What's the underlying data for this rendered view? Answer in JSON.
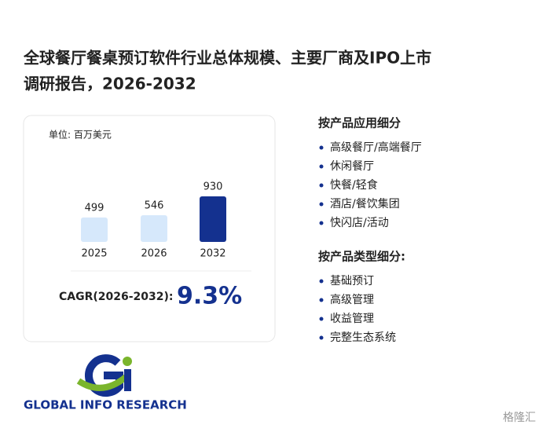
{
  "header": {
    "title_line1": "全球餐厅餐桌预订软件行业总体规模、主要厂商及IPO上市",
    "title_line2": "调研报告，2026-2032"
  },
  "chart_data": {
    "type": "bar",
    "unit": "单位: 百万美元",
    "categories": [
      "2025",
      "2026",
      "2032"
    ],
    "values": [
      499,
      546,
      930
    ],
    "colors": [
      "#d6e8fb",
      "#d6e8fb",
      "#14318f"
    ]
  },
  "cagr": {
    "label": "CAGR(2026-2032):",
    "value": "9.3%"
  },
  "segments": [
    {
      "heading": "按产品应用细分",
      "items": [
        "高级餐厅/高端餐厅",
        "休闲餐厅",
        "快餐/轻食",
        "酒店/餐饮集团",
        "快闪店/活动"
      ]
    },
    {
      "heading": "按产品类型细分:",
      "items": [
        "基础预订",
        "高级管理",
        "收益管理",
        "完整生态系统"
      ]
    }
  ],
  "logo": {
    "text": "GLOBAL INFO RESEARCH"
  },
  "watermark": {
    "text": "格隆汇"
  }
}
